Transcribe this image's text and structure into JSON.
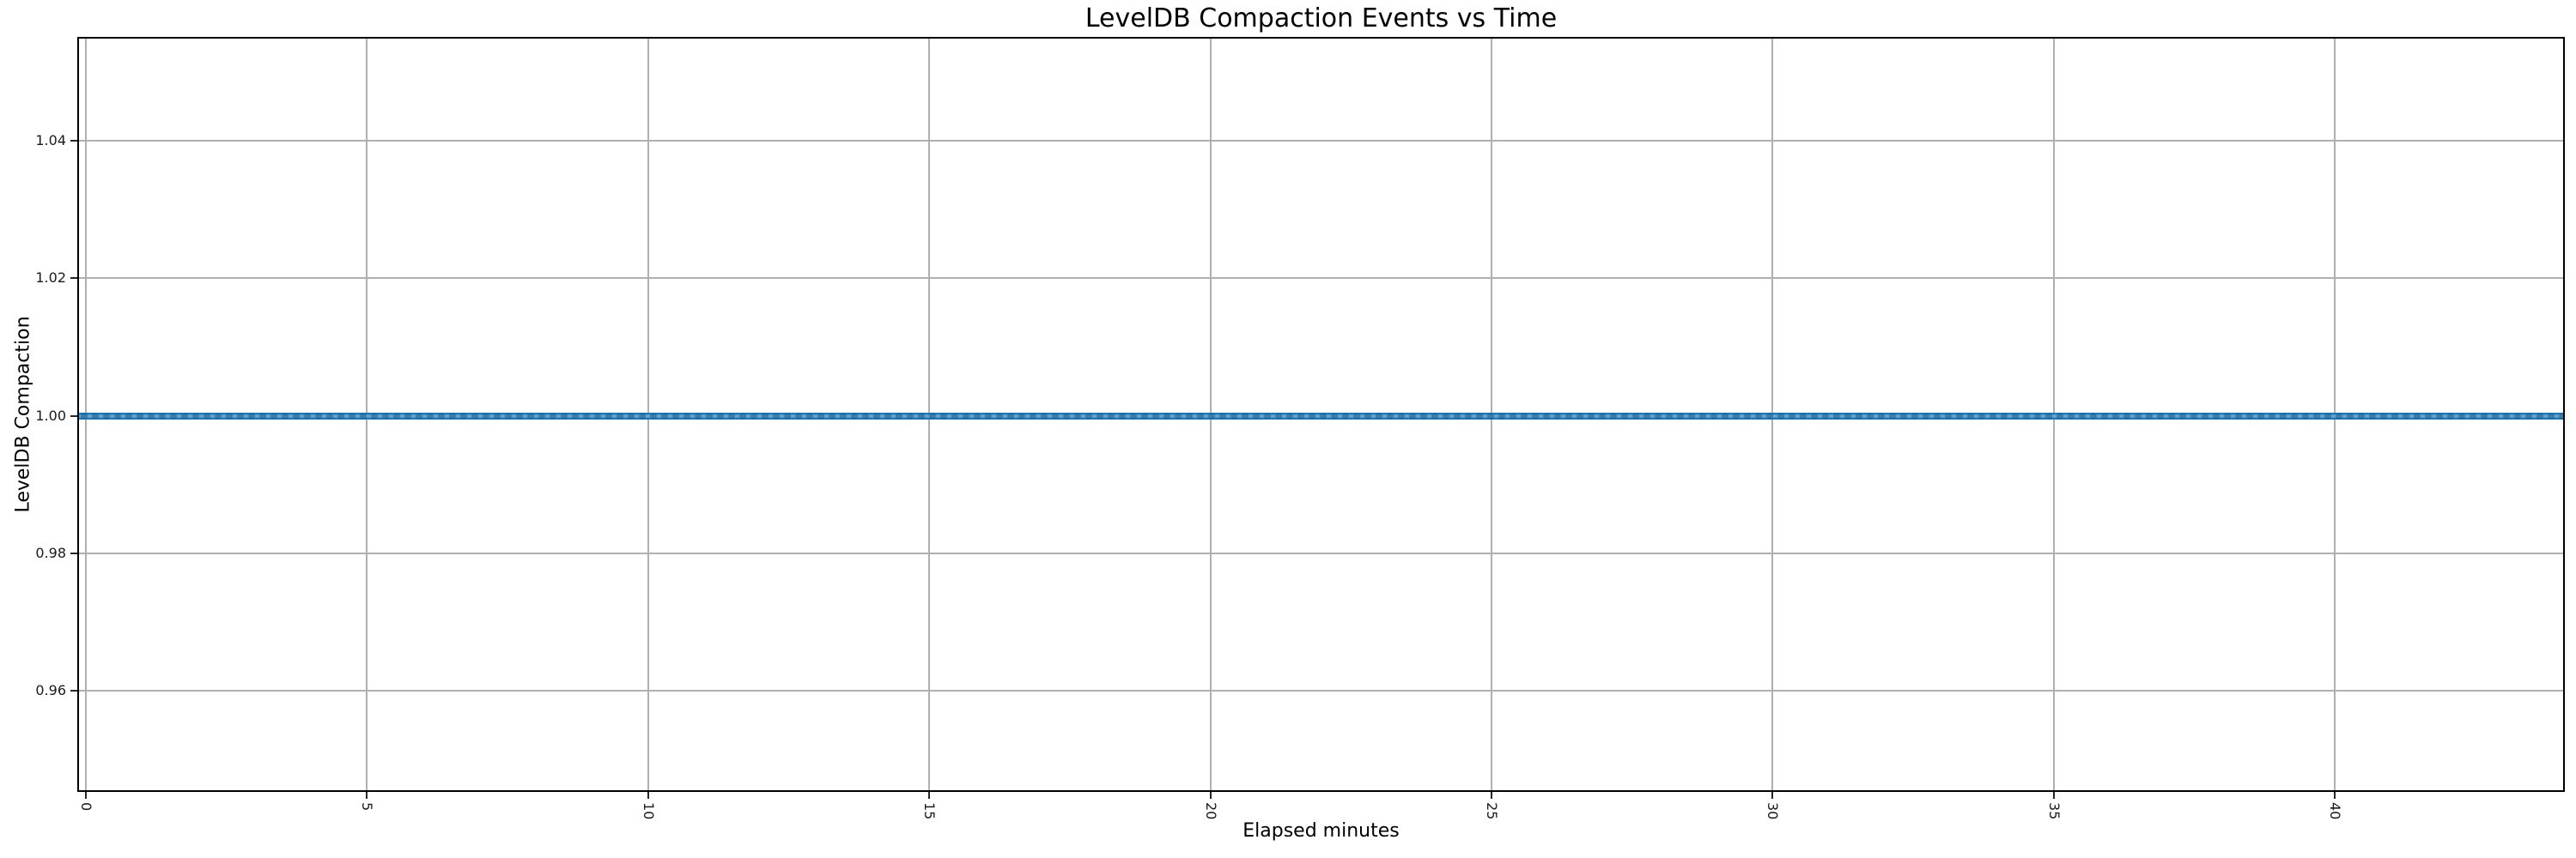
{
  "chart_data": {
    "type": "line",
    "title": "LevelDB Compaction Events vs Time",
    "xlabel": "Elapsed minutes",
    "ylabel": "LevelDB Compaction",
    "xlim": [
      -0.12,
      44.06
    ],
    "ylim": [
      0.9455,
      1.0549
    ],
    "x_ticks": [
      0,
      5,
      10,
      15,
      20,
      25,
      30,
      35,
      40
    ],
    "x_tick_labels": [
      "0",
      "5",
      "10",
      "15",
      "20",
      "25",
      "30",
      "35",
      "40"
    ],
    "x_tick_rotation_deg": 90,
    "y_ticks": [
      1.04,
      1.02,
      1.0,
      0.98,
      0.96
    ],
    "y_tick_labels": [
      "1.04",
      "1.02",
      "1.00",
      "0.98",
      "0.96"
    ],
    "grid": true,
    "legend": false,
    "series": [
      {
        "name": "LevelDB Compaction",
        "color": "#1f77b4",
        "marker": "o",
        "line_style": "solid",
        "y_constant": 1.0,
        "x": [
          0,
          1,
          2,
          3,
          4,
          5,
          6,
          7,
          8,
          9,
          10,
          11,
          12,
          13,
          14,
          15,
          16,
          17,
          18,
          19,
          20,
          21,
          22,
          23,
          24,
          25,
          26,
          27,
          28,
          29,
          30,
          31,
          32,
          33,
          34,
          35,
          36,
          37,
          38,
          39,
          40,
          41,
          42,
          43,
          44
        ],
        "y": [
          1,
          1,
          1,
          1,
          1,
          1,
          1,
          1,
          1,
          1,
          1,
          1,
          1,
          1,
          1,
          1,
          1,
          1,
          1,
          1,
          1,
          1,
          1,
          1,
          1,
          1,
          1,
          1,
          1,
          1,
          1,
          1,
          1,
          1,
          1,
          1,
          1,
          1,
          1,
          1,
          1,
          1,
          1,
          1,
          1
        ],
        "sample_interval_minutes_approx": 0.2,
        "note": "Flat line: every sampled compaction-event value equals 1.0 across the full 0-44 minute range; dense circular markers overlap into a continuous band"
      }
    ],
    "colors": {
      "line": "#1f77b4",
      "grid": "#b0b0b0",
      "spine": "#000000",
      "background": "#ffffff",
      "text": "#1a1a1a"
    }
  }
}
